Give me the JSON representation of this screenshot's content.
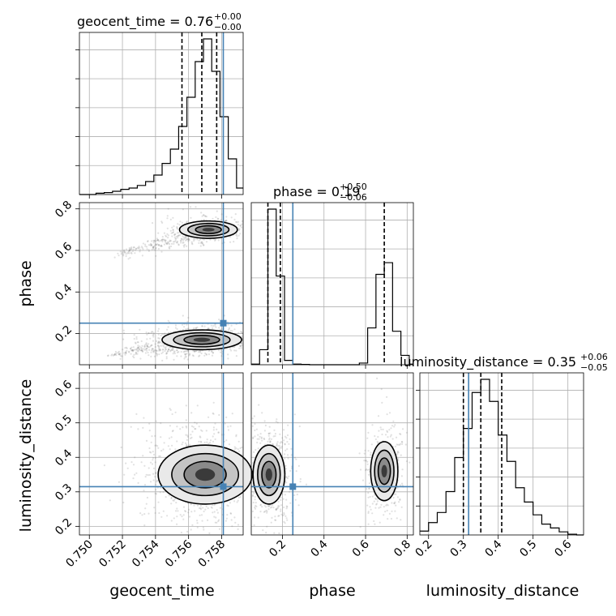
{
  "chart_data": {
    "type": "corner",
    "parameters": [
      "geocent_time",
      "phase",
      "luminosity_distance"
    ],
    "titles": [
      {
        "param": "geocent_time",
        "text": "geocent_time = 0.76",
        "sup": "+0.00",
        "sub": "−0.00"
      },
      {
        "param": "phase",
        "text": "phase = 0.19",
        "sup": "+0.50",
        "sub": "−0.06"
      },
      {
        "param": "luminosity_distance",
        "text": "luminosity_distance = 0.35",
        "sup": "+0.06",
        "sub": "−0.05"
      }
    ],
    "axis_labels": {
      "x": [
        "geocent_time",
        "phase",
        "luminosity_distance"
      ],
      "y": [
        "phase",
        "luminosity_distance"
      ]
    },
    "ranges": {
      "geocent_time": [
        0.7494,
        0.7593
      ],
      "phase": [
        0.05,
        0.83
      ],
      "luminosity_distance": [
        0.175,
        0.645
      ]
    },
    "ticks": {
      "geocent_time": [
        "0.750",
        "0.752",
        "0.754",
        "0.756",
        "0.758"
      ],
      "phase": [
        "0.2",
        "0.4",
        "0.6",
        "0.8"
      ],
      "luminosity_distance": [
        "0.2",
        "0.3",
        "0.4",
        "0.5",
        "0.6"
      ]
    },
    "truths": {
      "geocent_time": 0.7581,
      "phase": 0.25,
      "luminosity_distance": 0.315
    },
    "quantiles": {
      "geocent_time": [
        0.7556,
        0.7568,
        0.7577
      ],
      "phase": [
        0.13,
        0.19,
        0.69
      ],
      "luminosity_distance": [
        0.3,
        0.35,
        0.41
      ]
    },
    "histograms": {
      "geocent_time": {
        "edges": [
          0.7494,
          0.7499,
          0.7504,
          0.7509,
          0.7514,
          0.7519,
          0.7524,
          0.7529,
          0.7534,
          0.7539,
          0.7544,
          0.7549,
          0.7554,
          0.7559,
          0.7564,
          0.7569,
          0.7574,
          0.7579,
          0.7584,
          0.7589,
          0.7593
        ],
        "counts": [
          0,
          0,
          2,
          3,
          5,
          8,
          10,
          14,
          20,
          30,
          48,
          70,
          105,
          150,
          205,
          240,
          190,
          120,
          55,
          10
        ]
      },
      "phase": {
        "edges": [
          0.05,
          0.09,
          0.13,
          0.17,
          0.21,
          0.25,
          0.29,
          0.33,
          0.37,
          0.41,
          0.45,
          0.49,
          0.53,
          0.57,
          0.61,
          0.65,
          0.69,
          0.73,
          0.77,
          0.81,
          0.83
        ],
        "counts": [
          2,
          45,
          465,
          265,
          13,
          2,
          1,
          0,
          0,
          0,
          0,
          0,
          0,
          5,
          110,
          270,
          305,
          100,
          28,
          2
        ]
      },
      "luminosity_distance": {
        "edges": [
          0.175,
          0.2,
          0.225,
          0.25,
          0.275,
          0.3,
          0.325,
          0.35,
          0.375,
          0.4,
          0.425,
          0.45,
          0.475,
          0.5,
          0.525,
          0.55,
          0.575,
          0.6,
          0.625,
          0.645
        ],
        "counts": [
          10,
          32,
          58,
          112,
          200,
          275,
          368,
          402,
          345,
          258,
          190,
          122,
          85,
          52,
          28,
          18,
          8,
          2,
          0
        ]
      }
    },
    "clusters": [
      {
        "x": "geocent_time",
        "y": "phase",
        "center": [
          0.7572,
          0.7
        ],
        "sd": [
          0.0008,
          0.022
        ],
        "weight": 0.35,
        "tail": [
          0.7515,
          0.575
        ]
      },
      {
        "x": "geocent_time",
        "y": "phase",
        "center": [
          0.7568,
          0.17
        ],
        "sd": [
          0.0011,
          0.025
        ],
        "weight": 0.65,
        "tail": [
          0.751,
          0.095
        ]
      },
      {
        "x": "geocent_time",
        "y": "luminosity_distance",
        "center": [
          0.757,
          0.35
        ],
        "sd": [
          0.0013,
          0.045
        ],
        "weight": 1.0
      },
      {
        "x": "phase",
        "y": "luminosity_distance",
        "center": [
          0.135,
          0.35
        ],
        "sd": [
          0.035,
          0.045
        ],
        "weight": 0.6
      },
      {
        "x": "phase",
        "y": "luminosity_distance",
        "center": [
          0.69,
          0.36
        ],
        "sd": [
          0.03,
          0.045
        ],
        "weight": 0.4
      }
    ],
    "grid": true
  }
}
